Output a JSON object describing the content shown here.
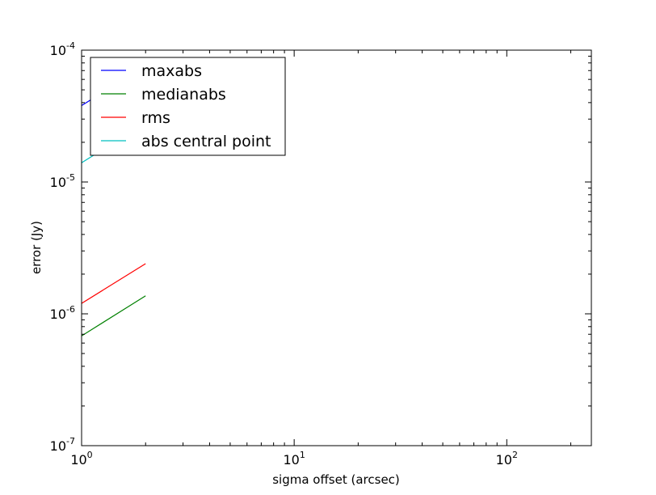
{
  "chart_data": {
    "type": "line",
    "title": "",
    "xlabel": "sigma offset (arcsec)",
    "ylabel": "error (Jy)",
    "xscale": "log",
    "yscale": "log",
    "xlim": [
      1,
      250
    ],
    "ylim": [
      1e-07,
      0.0001
    ],
    "x_ticks": [
      {
        "value": 1,
        "base": "10",
        "exp": "0"
      },
      {
        "value": 10,
        "base": "10",
        "exp": "1"
      },
      {
        "value": 100,
        "base": "10",
        "exp": "2"
      }
    ],
    "y_ticks": [
      {
        "value": 1e-07,
        "base": "10",
        "exp": "-7"
      },
      {
        "value": 1e-06,
        "base": "10",
        "exp": "-6"
      },
      {
        "value": 1e-05,
        "base": "10",
        "exp": "-5"
      },
      {
        "value": 0.0001,
        "base": "10",
        "exp": "-4"
      }
    ],
    "grid": false,
    "legend_position": "upper-left",
    "series": [
      {
        "name": "maxabs",
        "color": "#0000ff",
        "x": [
          1,
          2
        ],
        "y": [
          3.8e-05,
          7.6e-05
        ]
      },
      {
        "name": "medianabs",
        "color": "#008000",
        "x": [
          1,
          2
        ],
        "y": [
          6.8e-07,
          1.37e-06
        ]
      },
      {
        "name": "rms",
        "color": "#ff0000",
        "x": [
          1,
          2
        ],
        "y": [
          1.2e-06,
          2.4e-06
        ]
      },
      {
        "name": "abs central point",
        "color": "#00bfbf",
        "x": [
          1,
          2
        ],
        "y": [
          1.4e-05,
          2.8e-05
        ]
      }
    ]
  }
}
